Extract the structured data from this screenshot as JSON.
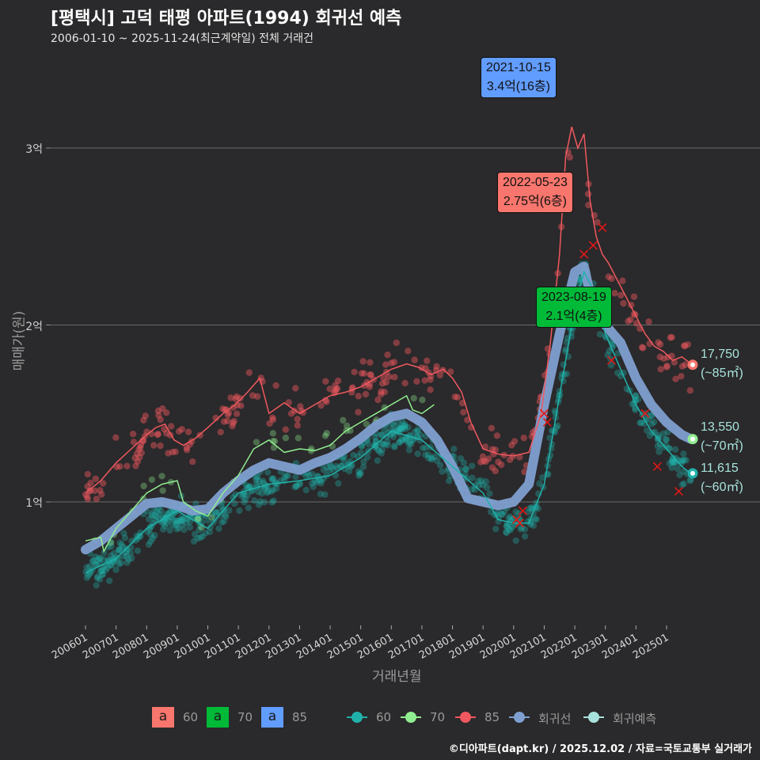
{
  "header": {
    "title": "[평택시] 고덕 태평 아파트(1994) 회귀선 예측",
    "subtitle": "2006-01-10 ~ 2025-11-24(최근계약일) 전체 거래건"
  },
  "axes": {
    "ylabel": "매매가(원)",
    "xlabel": "거래년월",
    "yticks": [
      {
        "label": "3억",
        "value": 3
      },
      {
        "label": "2억",
        "value": 2
      },
      {
        "label": "1억",
        "value": 1
      }
    ],
    "xticks": [
      "200601",
      "200701",
      "200801",
      "200901",
      "201001",
      "201101",
      "201201",
      "201301",
      "201401",
      "201501",
      "201601",
      "201701",
      "201801",
      "201901",
      "202001",
      "202101",
      "202201",
      "202301",
      "202401",
      "202501"
    ]
  },
  "annotations": [
    {
      "date": "2021-10-15",
      "value": "3.4억(16층)",
      "color": "#619cff"
    },
    {
      "date": "2022-05-23",
      "value": "2.75억(6층)",
      "color": "#f8766d"
    },
    {
      "date": "2023-08-19",
      "value": "2.1억(4층)",
      "color": "#00ba38"
    }
  ],
  "end_labels": [
    {
      "price": "17,750",
      "area": "(~85㎡)",
      "color": "#f8766d"
    },
    {
      "price": "13,550",
      "area": "(~70㎡)",
      "color": "#90ee90"
    },
    {
      "price": "11,615",
      "area": "(~60㎡)",
      "color": "#20b2aa"
    }
  ],
  "legend": {
    "annotation_boxes": [
      {
        "glyph": "a",
        "label": "60",
        "color": "#f8766d"
      },
      {
        "glyph": "a",
        "label": "70",
        "color": "#00ba38"
      },
      {
        "glyph": "a",
        "label": "85",
        "color": "#619cff"
      }
    ],
    "series": [
      {
        "label": "60",
        "color": "#20b2aa"
      },
      {
        "label": "70",
        "color": "#90ee90"
      },
      {
        "label": "85",
        "color": "#f0595f"
      },
      {
        "label": "회귀선",
        "color": "#7f9fd0"
      },
      {
        "label": "회귀예측",
        "color": "#a7e3dc"
      }
    ]
  },
  "footer": "©디아파트(dapt.kr) / 2025.12.02 / 자료=국토교통부 실거래가",
  "chart_data": {
    "type": "line",
    "title": "[평택시] 고덕 태평 아파트(1994) 회귀선 예측",
    "subtitle": "2006-01-10 ~ 2025-11-24(최근계약일) 전체 거래건",
    "xlabel": "거래년월",
    "ylabel": "매매가(원)",
    "y_unit": "억",
    "ylim": [
      0.35,
      3.6
    ],
    "xlim": [
      2006.0,
      2025.95
    ],
    "grid": "horizontal",
    "legend_position": "bottom",
    "series": [
      {
        "name": "85 (이동평균)",
        "color": "#f8766d",
        "x": [
          2006.0,
          2006.5,
          2007.0,
          2007.5,
          2008.0,
          2008.3,
          2008.6,
          2008.9,
          2009.2,
          2009.6,
          2010.0,
          2010.5,
          2010.9,
          2011.3,
          2011.7,
          2012.0,
          2012.5,
          2013.0,
          2013.5,
          2014.0,
          2014.5,
          2015.0,
          2015.5,
          2016.0,
          2016.5,
          2016.9,
          2017.3,
          2017.7,
          2018.0,
          2018.3,
          2018.6,
          2019.0,
          2019.5,
          2020.0,
          2020.5,
          2020.9,
          2021.2,
          2021.5,
          2021.7,
          2021.9,
          2022.1,
          2022.3,
          2022.5,
          2022.7,
          2022.9,
          2023.1,
          2023.4,
          2023.7,
          2024.0,
          2024.3,
          2024.6,
          2024.9,
          2025.2,
          2025.5,
          2025.8
        ],
        "values": [
          1.05,
          1.12,
          1.22,
          1.3,
          1.38,
          1.42,
          1.44,
          1.35,
          1.32,
          1.36,
          1.42,
          1.5,
          1.55,
          1.62,
          1.7,
          1.5,
          1.56,
          1.5,
          1.55,
          1.6,
          1.62,
          1.65,
          1.7,
          1.75,
          1.78,
          1.76,
          1.72,
          1.75,
          1.7,
          1.62,
          1.45,
          1.3,
          1.27,
          1.26,
          1.28,
          1.5,
          1.9,
          2.4,
          2.95,
          3.12,
          3.0,
          3.08,
          2.7,
          2.5,
          2.4,
          2.35,
          2.25,
          2.15,
          2.05,
          1.95,
          1.88,
          1.85,
          1.8,
          1.82,
          1.78
        ]
      },
      {
        "name": "70 (이동평균)",
        "color": "#90ee90",
        "x": [
          2006.0,
          2006.5,
          2006.6,
          2007.0,
          2007.5,
          2008.0,
          2008.5,
          2009.0,
          2009.2,
          2009.6,
          2010.0,
          2010.5,
          2011.0,
          2011.5,
          2012.0,
          2012.5,
          2013.0,
          2013.5,
          2014.0,
          2014.5,
          2015.0,
          2015.5,
          2016.0,
          2016.5,
          2016.7,
          2017.0,
          2017.4
        ],
        "values": [
          0.78,
          0.8,
          0.72,
          0.85,
          0.95,
          1.05,
          1.1,
          1.12,
          1.0,
          0.95,
          0.92,
          1.05,
          1.15,
          1.3,
          1.35,
          1.28,
          1.3,
          1.29,
          1.32,
          1.4,
          1.45,
          1.5,
          1.55,
          1.6,
          1.52,
          1.5,
          1.55
        ]
      },
      {
        "name": "60 (이동평균)",
        "color": "#20b2aa",
        "x": [
          2006.0,
          2007.0,
          2008.0,
          2009.0,
          2010.0,
          2011.0,
          2012.0,
          2013.0,
          2014.0,
          2015.0,
          2016.0,
          2017.0,
          2018.0,
          2019.0,
          2019.5,
          2020.0,
          2020.5,
          2021.0,
          2021.5,
          2022.0,
          2022.3,
          2022.6,
          2023.0,
          2023.5,
          2024.0,
          2024.5,
          2025.0,
          2025.5,
          2025.8
        ],
        "values": [
          0.6,
          0.68,
          0.85,
          0.95,
          0.85,
          1.05,
          1.1,
          1.12,
          1.15,
          1.25,
          1.4,
          1.35,
          1.2,
          1.05,
          0.9,
          0.88,
          0.88,
          1.1,
          1.6,
          2.1,
          2.3,
          2.2,
          1.95,
          1.75,
          1.55,
          1.4,
          1.3,
          1.2,
          1.16
        ]
      },
      {
        "name": "회귀선",
        "color": "#7f9fd0",
        "x": [
          2006.0,
          2006.5,
          2007.0,
          2007.5,
          2008.0,
          2008.5,
          2009.0,
          2009.5,
          2010.0,
          2010.5,
          2011.0,
          2011.5,
          2012.0,
          2012.5,
          2013.0,
          2013.5,
          2014.0,
          2014.5,
          2015.0,
          2015.5,
          2016.0,
          2016.5,
          2017.0,
          2017.5,
          2018.0,
          2018.5,
          2019.0,
          2019.5,
          2020.0,
          2020.5,
          2021.0,
          2021.5,
          2022.0,
          2022.3,
          2022.6,
          2023.0,
          2023.5,
          2024.0,
          2024.5,
          2025.0,
          2025.5,
          2025.8
        ],
        "values": [
          0.73,
          0.78,
          0.85,
          0.92,
          0.99,
          1.0,
          0.98,
          0.95,
          0.96,
          1.05,
          1.12,
          1.18,
          1.22,
          1.2,
          1.18,
          1.22,
          1.25,
          1.3,
          1.36,
          1.43,
          1.48,
          1.5,
          1.45,
          1.35,
          1.2,
          1.02,
          1.0,
          0.98,
          1.0,
          1.1,
          1.55,
          1.95,
          2.3,
          2.33,
          2.1,
          2.0,
          1.9,
          1.7,
          1.55,
          1.45,
          1.38,
          1.355
        ]
      }
    ],
    "end_values": {
      "85": 17750,
      "70": 13550,
      "60": 11615
    },
    "annotations": [
      {
        "date": "2021-10-15",
        "value": 3.4,
        "floor": 16,
        "series": "85"
      },
      {
        "date": "2022-05-23",
        "value": 2.75,
        "floor": 6,
        "series": "60"
      },
      {
        "date": "2023-08-19",
        "value": 2.1,
        "floor": 4,
        "series": "70"
      }
    ]
  }
}
